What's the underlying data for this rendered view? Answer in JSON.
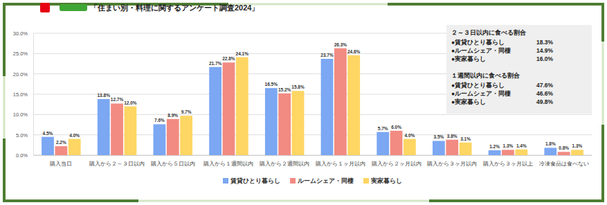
{
  "chart_data": {
    "type": "bar",
    "title": "「住まい別・料理に関するアンケート調査2024」",
    "categories": [
      "購入当日",
      "購入から２～３日以内",
      "購入から５日以内",
      "購入から１週間以内",
      "購入から２週間以内",
      "購入から１ヶ月以内",
      "購入から２ヶ月以内",
      "購入から３ヶ月以内",
      "購入から３ヶ月以上",
      "冷凍食品は食べない"
    ],
    "series": [
      {
        "name": "賃貸ひとり暮らし",
        "color": "#7ba7f3",
        "values": [
          4.5,
          13.8,
          7.6,
          21.7,
          16.5,
          23.7,
          5.7,
          3.5,
          1.2,
          1.8
        ],
        "value_labels": [
          "4.5%",
          "13.8%",
          "7.6%",
          "21.7%",
          "16.5%",
          "23.7%",
          "5.7%",
          "3.5%",
          "1.2%",
          "1.8%"
        ]
      },
      {
        "name": "ルームシェア・同棲",
        "color": "#f28b82",
        "values": [
          2.2,
          12.7,
          8.9,
          22.8,
          15.2,
          26.3,
          6.0,
          3.8,
          1.3,
          0.8
        ],
        "value_labels": [
          "2.2%",
          "12.7%",
          "8.9%",
          "22.8%",
          "15.2%",
          "26.3%",
          "6.0%",
          "3.8%",
          "1.3%",
          "0.8%"
        ]
      },
      {
        "name": "実家暮らし",
        "color": "#fdd663",
        "values": [
          4.0,
          12.0,
          9.7,
          24.1,
          15.8,
          24.6,
          4.0,
          3.1,
          1.4,
          1.3
        ],
        "value_labels": [
          "4.0%",
          "12.0%",
          "9.7%",
          "24.1%",
          "15.8%",
          "24.6%",
          "4.0%",
          "3.1%",
          "1.4%",
          "1.3%"
        ]
      }
    ],
    "ylim": [
      0,
      30
    ],
    "yticks": [
      {
        "value": 0,
        "label": "0.0%"
      },
      {
        "value": 5,
        "label": "5.0%"
      },
      {
        "value": 10,
        "label": "10.0%"
      },
      {
        "value": 15,
        "label": "15.0%"
      },
      {
        "value": 20,
        "label": "20.0%"
      },
      {
        "value": 25,
        "label": "25.0%"
      },
      {
        "value": 30,
        "label": "30.0%"
      }
    ],
    "grid": true,
    "data_labels": true,
    "legend": "bottom",
    "annotations": [
      {
        "title": "２～３日以内に食べる割合",
        "items": [
          {
            "label": "●賃貸ひとり暮らし",
            "text": "18.3%"
          },
          {
            "label": "●ルームシェア・同棲",
            "text": "14.9%"
          },
          {
            "label": "●実家暮らし",
            "text": "16.0%"
          }
        ]
      },
      {
        "title": "１週間以内に食べる割合",
        "items": [
          {
            "label": "●賃貸ひとり暮らし",
            "text": "47.6%"
          },
          {
            "label": "●ルームシェア・同棲",
            "text": "46.6%"
          },
          {
            "label": "●実家暮らし",
            "text": "49.8%"
          }
        ]
      }
    ]
  }
}
